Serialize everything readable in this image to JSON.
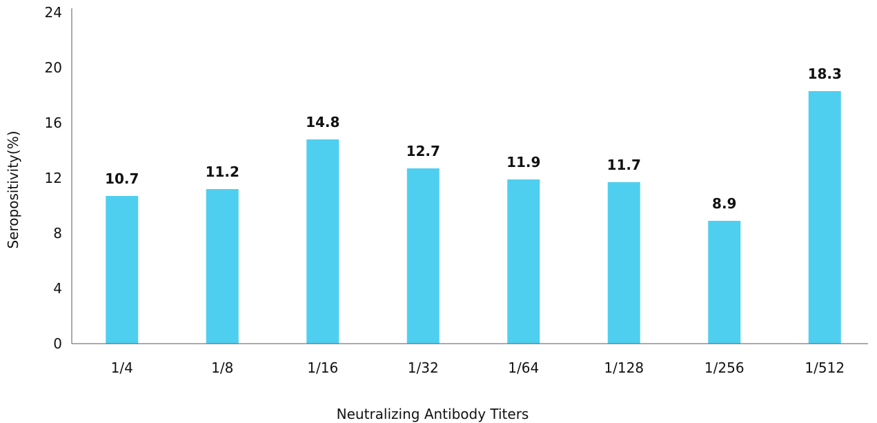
{
  "chart_data": {
    "type": "bar",
    "title": "",
    "xlabel": "Neutralizing Antibody Titers",
    "ylabel": "Seropositivity(%)",
    "categories": [
      "1/4",
      "1/8",
      "1/16",
      "1/32",
      "1/64",
      "1/128",
      "1/256",
      "1/512"
    ],
    "values": [
      10.7,
      11.2,
      14.8,
      12.7,
      11.9,
      11.7,
      8.9,
      18.3
    ],
    "data_labels": [
      "10.7",
      "11.2",
      "14.8",
      "12.7",
      "11.9",
      "11.7",
      "8.9",
      "18.3"
    ],
    "ylim": [
      0,
      24
    ],
    "yticks": [
      0,
      4,
      8,
      12,
      16,
      20,
      24
    ],
    "grid": false,
    "legend": "none",
    "bar_color": "#4fcfef"
  }
}
